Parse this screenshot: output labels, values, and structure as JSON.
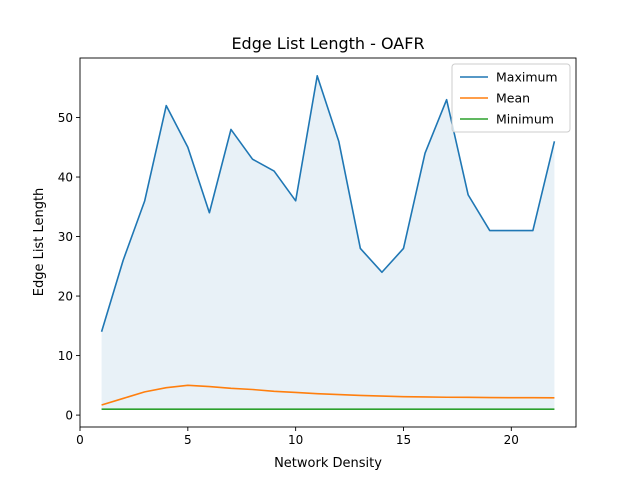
{
  "chart_data": {
    "type": "line",
    "title": "Edge List Length - OAFR",
    "xlabel": "Network Density",
    "ylabel": "Edge List Length",
    "xlim": [
      0,
      23
    ],
    "ylim": [
      -2,
      60
    ],
    "xticks": [
      0,
      5,
      10,
      15,
      20
    ],
    "yticks": [
      0,
      10,
      20,
      30,
      40,
      50
    ],
    "grid": false,
    "legend_position": "top-right",
    "fill_between": {
      "upper": "Maximum",
      "lower": "Minimum",
      "color": "#1f77b4",
      "opacity": 0.1
    },
    "x": [
      1,
      2,
      3,
      4,
      5,
      6,
      7,
      8,
      9,
      10,
      11,
      12,
      13,
      14,
      15,
      16,
      17,
      18,
      19,
      20,
      21,
      22
    ],
    "series": [
      {
        "name": "Maximum",
        "color": "#1f77b4",
        "values": [
          14,
          26,
          36,
          52,
          45,
          34,
          48,
          43,
          41,
          36,
          57,
          46,
          28,
          24,
          28,
          44,
          53,
          37,
          31,
          31,
          31,
          46
        ]
      },
      {
        "name": "Mean",
        "color": "#ff7f0e",
        "values": [
          1.7,
          2.8,
          3.9,
          4.6,
          5.0,
          4.8,
          4.5,
          4.3,
          4.0,
          3.8,
          3.6,
          3.45,
          3.3,
          3.2,
          3.1,
          3.05,
          3.0,
          2.98,
          2.95,
          2.93,
          2.92,
          2.9
        ]
      },
      {
        "name": "Minimum",
        "color": "#2ca02c",
        "values": [
          1,
          1,
          1,
          1,
          1,
          1,
          1,
          1,
          1,
          1,
          1,
          1,
          1,
          1,
          1,
          1,
          1,
          1,
          1,
          1,
          1,
          1
        ]
      }
    ]
  }
}
